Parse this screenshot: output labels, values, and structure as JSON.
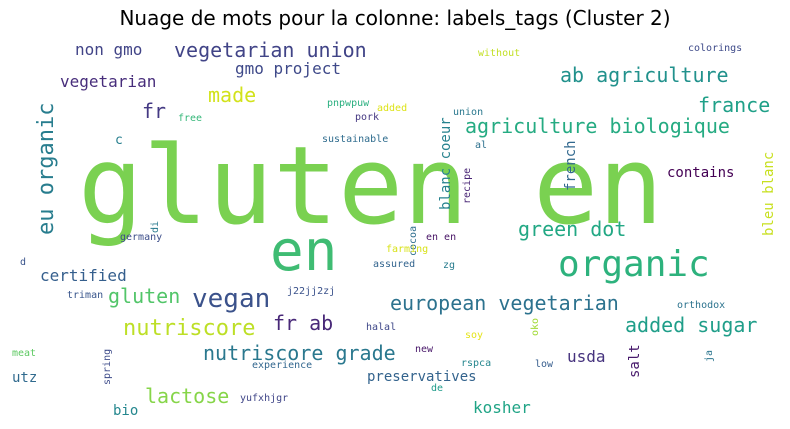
{
  "title": "Nuage de mots pour la colonne: labels_tags (Cluster 2)",
  "words": [
    {
      "text": "gluten en",
      "color": "#7ad151"
    },
    {
      "text": "en",
      "color": "#3fbc73"
    },
    {
      "text": "organic",
      "color": "#2db27d"
    },
    {
      "text": "vegan",
      "color": "#3b528b"
    },
    {
      "text": "eu organic",
      "color": "#287d8e"
    },
    {
      "text": "agriculture biologique",
      "color": "#25ab82"
    },
    {
      "text": "ab agriculture",
      "color": "#21918c"
    },
    {
      "text": "vegetarian union",
      "color": "#414487"
    },
    {
      "text": "european vegetarian",
      "color": "#2c728e"
    },
    {
      "text": "nutriscore",
      "color": "#bddf26"
    },
    {
      "text": "gluten",
      "color": "#52c569"
    },
    {
      "text": "nutriscore grade",
      "color": "#2a788e"
    },
    {
      "text": "added sugar",
      "color": "#1f9e89"
    },
    {
      "text": "green dot",
      "color": "#22a884"
    },
    {
      "text": "france",
      "color": "#1fa088"
    },
    {
      "text": "made",
      "color": "#d2e21b"
    },
    {
      "text": "fr ab",
      "color": "#482878"
    },
    {
      "text": "lactose",
      "color": "#86d549"
    },
    {
      "text": "certified",
      "color": "#355f8d"
    },
    {
      "text": "gmo project",
      "color": "#3e4989"
    },
    {
      "text": "non gmo",
      "color": "#414487"
    },
    {
      "text": "vegetarian",
      "color": "#472d7b"
    },
    {
      "text": "fr",
      "color": "#443983"
    },
    {
      "text": "kosher",
      "color": "#20a486"
    },
    {
      "text": "usda",
      "color": "#46337e"
    },
    {
      "text": "preservatives",
      "color": "#33638d"
    },
    {
      "text": "contains",
      "color": "#440154"
    },
    {
      "text": "blanc coeur",
      "color": "#26828e"
    },
    {
      "text": "french",
      "color": "#31688e"
    },
    {
      "text": "bleu blanc",
      "color": "#c8e020"
    },
    {
      "text": "salt",
      "color": "#481a6c"
    },
    {
      "text": "utz",
      "color": "#306a8e"
    },
    {
      "text": "bio",
      "color": "#24878e"
    },
    {
      "text": "c",
      "color": "#277f8e"
    },
    {
      "text": "pnpwpuw",
      "color": "#29af7f"
    },
    {
      "text": "added",
      "color": "#dde318"
    },
    {
      "text": "union",
      "color": "#2a788e"
    },
    {
      "text": "pork",
      "color": "#453882"
    },
    {
      "text": "free",
      "color": "#35b779"
    },
    {
      "text": "sustainable",
      "color": "#2f6c8e"
    },
    {
      "text": "al",
      "color": "#2d718e"
    },
    {
      "text": "recipe",
      "color": "#482475"
    },
    {
      "text": "without",
      "color": "#c2df23"
    },
    {
      "text": "colorings",
      "color": "#3e4a89"
    },
    {
      "text": "cocoa",
      "color": "#2e6e8e"
    },
    {
      "text": "di",
      "color": "#297a8e"
    },
    {
      "text": "germany",
      "color": "#3d4e8a"
    },
    {
      "text": "farming",
      "color": "#d8e219"
    },
    {
      "text": "en en",
      "color": "#471365"
    },
    {
      "text": "assured",
      "color": "#32648e"
    },
    {
      "text": "zg",
      "color": "#287c8e"
    },
    {
      "text": "d",
      "color": "#3a548c"
    },
    {
      "text": "triman",
      "color": "#39568c"
    },
    {
      "text": "j22jj2zj",
      "color": "#3b528b"
    },
    {
      "text": "orthodox",
      "color": "#2c738e"
    },
    {
      "text": "halal",
      "color": "#3f4889"
    },
    {
      "text": "soy",
      "color": "#e5e419"
    },
    {
      "text": "oko",
      "color": "#a2da37"
    },
    {
      "text": "meat",
      "color": "#5ec962"
    },
    {
      "text": "spring",
      "color": "#3e4c8a"
    },
    {
      "text": "new",
      "color": "#481769"
    },
    {
      "text": "experience",
      "color": "#31668e"
    },
    {
      "text": "rspca",
      "color": "#24868e"
    },
    {
      "text": "low",
      "color": "#365d8d"
    },
    {
      "text": "ja",
      "color": "#2b758e"
    },
    {
      "text": "yufxhjgr",
      "color": "#404688"
    },
    {
      "text": "de",
      "color": "#1e9b8a"
    }
  ]
}
